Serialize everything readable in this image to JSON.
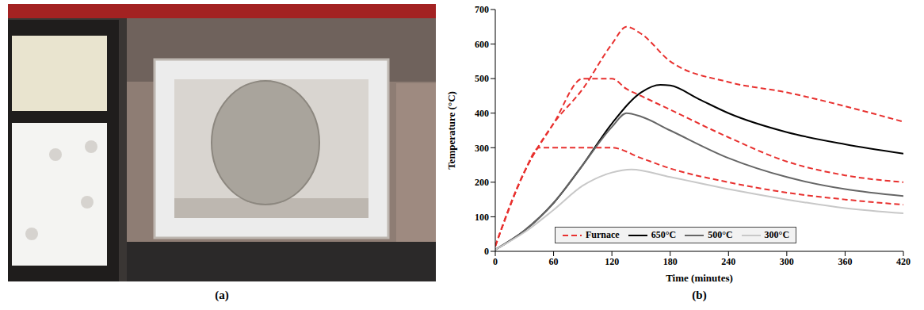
{
  "panel_labels": [
    "(a)",
    "(b)"
  ],
  "chart_data": {
    "type": "line",
    "xlabel": "Time (minutes)",
    "ylabel": "Temperature (°C)",
    "xlim": [
      0,
      420
    ],
    "xticks": [
      0,
      60,
      120,
      180,
      240,
      300,
      360,
      420
    ],
    "ylim": [
      0,
      700
    ],
    "yticks": [
      0,
      100,
      200,
      300,
      400,
      500,
      600,
      700
    ],
    "grid": false,
    "legend": "bottom",
    "series": [
      {
        "name": "Furnace",
        "color": "#e8312f",
        "line_style": "dashed",
        "x": [
          0,
          30,
          45,
          60,
          90,
          120,
          150,
          180,
          240,
          300,
          360,
          420
        ],
        "values": [
          15,
          230,
          300,
          300,
          300,
          300,
          270,
          240,
          200,
          170,
          150,
          135
        ]
      },
      {
        "name": "Furnace",
        "color": "#e8312f",
        "line_style": "dashed",
        "x": [
          0,
          30,
          60,
          90,
          120,
          135,
          150,
          180,
          240,
          300,
          360,
          420
        ],
        "values": [
          15,
          230,
          370,
          500,
          500,
          470,
          450,
          410,
          330,
          260,
          220,
          200
        ]
      },
      {
        "name": "Furnace",
        "color": "#e8312f",
        "line_style": "dashed",
        "x": [
          0,
          30,
          60,
          90,
          120,
          135,
          150,
          180,
          240,
          300,
          360,
          420
        ],
        "values": [
          15,
          230,
          370,
          470,
          600,
          650,
          630,
          550,
          490,
          460,
          420,
          375
        ]
      },
      {
        "name": "650°C",
        "color": "#000000",
        "line_style": "solid",
        "x": [
          0,
          30,
          60,
          90,
          120,
          150,
          170,
          180,
          210,
          240,
          300,
          360,
          420
        ],
        "values": [
          5,
          60,
          140,
          250,
          370,
          460,
          482,
          480,
          440,
          400,
          345,
          310,
          283
        ]
      },
      {
        "name": "500°C",
        "color": "#666666",
        "line_style": "solid",
        "x": [
          0,
          30,
          60,
          90,
          120,
          135,
          150,
          180,
          240,
          300,
          360,
          420
        ],
        "values": [
          5,
          60,
          140,
          250,
          360,
          400,
          390,
          350,
          270,
          215,
          180,
          160
        ]
      },
      {
        "name": "300°C",
        "color": "#c8c8c8",
        "line_style": "solid",
        "x": [
          0,
          30,
          60,
          90,
          120,
          140,
          180,
          240,
          300,
          360,
          420
        ],
        "values": [
          5,
          55,
          120,
          190,
          228,
          237,
          215,
          180,
          150,
          125,
          110
        ]
      }
    ]
  }
}
